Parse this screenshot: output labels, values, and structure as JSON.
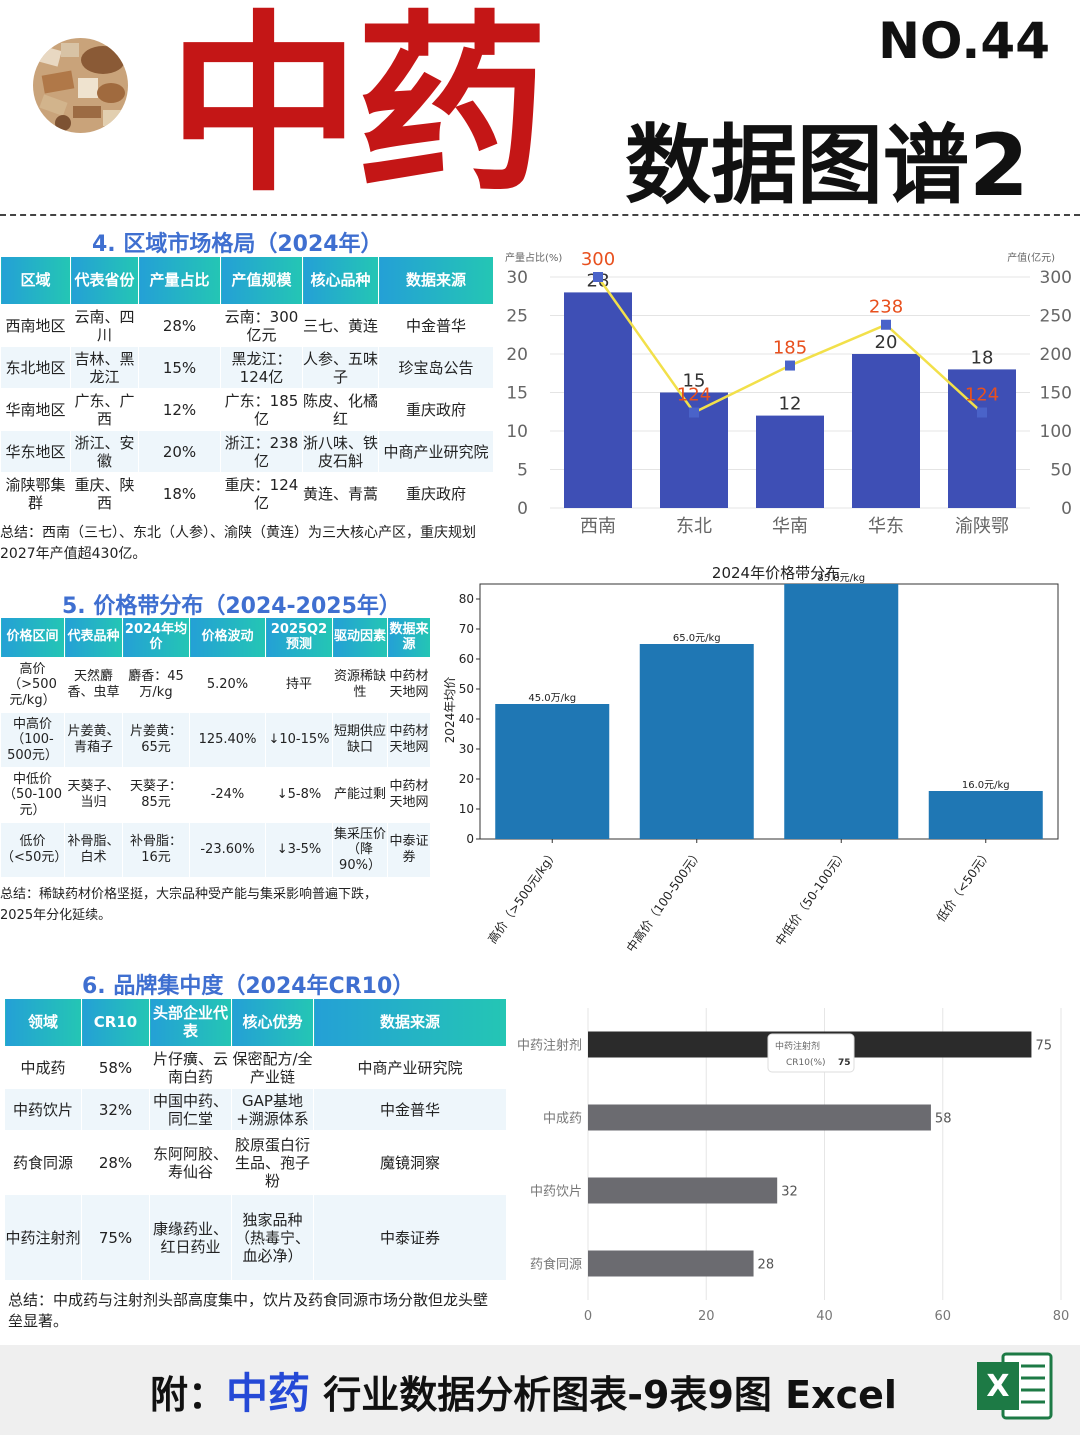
{
  "header": {
    "title": "中药",
    "issue": "NO.44",
    "subtitle": "数据图谱2"
  },
  "section4": {
    "title": "4. 区域市场格局（2024年）",
    "headers": [
      "区域",
      "代表省份",
      "产量占比",
      "产值规模",
      "核心品种",
      "数据来源"
    ],
    "rows": [
      [
        "西南地区",
        "云南、四川",
        "28%",
        "云南：300亿元",
        "三七、黄连",
        "中金普华"
      ],
      [
        "东北地区",
        "吉林、黑龙江",
        "15%",
        "黑龙江：124亿",
        "人参、五味子",
        "珍宝岛公告"
      ],
      [
        "华南地区",
        "广东、广西",
        "12%",
        "广东：185亿",
        "陈皮、化橘红",
        "重庆政府"
      ],
      [
        "华东地区",
        "浙江、安徽",
        "20%",
        "浙江：238亿",
        "浙八味、铁皮石斛",
        "中商产业研究院"
      ],
      [
        "渝陕鄂集群",
        "重庆、陕西",
        "18%",
        "重庆：124亿",
        "黄连、青蒿",
        "重庆政府"
      ]
    ],
    "summary": "总结：西南（三七）、东北（人参）、渝陕（黄连）为三大核心产区，重庆规划2027年产值超430亿。"
  },
  "section5": {
    "title": "5. 价格带分布（2024-2025年）",
    "headers": [
      "价格区间",
      "代表品种",
      "2024年均价",
      "价格波动",
      "2025Q2预测",
      "驱动因素",
      "数据来源"
    ],
    "rows": [
      [
        "高价（>500元/kg）",
        "天然麝香、虫草",
        "麝香：45万/kg",
        "5.20%",
        "持平",
        "资源稀缺性",
        "中药材天地网"
      ],
      [
        "中高价（100-500元）",
        "片姜黄、青葙子",
        "片姜黄：65元",
        "125.40%",
        "↓10-15%",
        "短期供应缺口",
        "中药材天地网"
      ],
      [
        "中低价（50-100元）",
        "天葵子、当归",
        "天葵子：85元",
        "-24%",
        "↓5-8%",
        "产能过剩",
        "中药材天地网"
      ],
      [
        "低价（<50元）",
        "补骨脂、白术",
        "补骨脂：16元",
        "-23.60%",
        "↓3-5%",
        "集采压价（降90%）",
        "中泰证券"
      ]
    ],
    "summary": "总结：稀缺药材价格坚挺，大宗品种受产能与集采影响普遍下跌，2025年分化延续。"
  },
  "section6": {
    "title": "6. 品牌集中度（2024年CR10）",
    "headers": [
      "领域",
      "CR10",
      "头部企业代表",
      "核心优势",
      "数据来源"
    ],
    "rows": [
      [
        "中成药",
        "58%",
        "片仔癀、云南白药",
        "保密配方/全产业链",
        "中商产业研究院"
      ],
      [
        "中药饮片",
        "32%",
        "中国中药、同仁堂",
        "GAP基地+溯源体系",
        "中金普华"
      ],
      [
        "药食同源",
        "28%",
        "东阿阿胶、寿仙谷",
        "胶原蛋白衍生品、孢子粉",
        "魔镜洞察"
      ],
      [
        "中药注射剂",
        "75%",
        "康缘药业、红日药业",
        "独家品种（热毒宁、血必净）",
        "中泰证券"
      ]
    ],
    "summary": "总结：中成药与注射剂头部高度集中，饮片及药食同源市场分散但龙头壁垒显著。"
  },
  "banner": {
    "prefix": "附：",
    "highlight": "中药",
    "rest": "行业数据分析图表-9表9图 Excel",
    "excel_letter": "X"
  },
  "chart_data": [
    {
      "type": "bar",
      "title": "",
      "categories": [
        "西南",
        "东北",
        "华南",
        "华东",
        "渝陕鄂"
      ],
      "series": [
        {
          "name": "",
          "type": "bar",
          "axis": "left",
          "values": [
            28,
            15,
            12,
            20,
            18
          ],
          "color": "#3e4fb5"
        },
        {
          "name": "",
          "type": "line",
          "axis": "right",
          "values": [
            300,
            124,
            185,
            238,
            124
          ],
          "color": "#f2e04a",
          "label_color": "#e8501e",
          "marker_color": "#4a63c9"
        }
      ],
      "ylabel_left": "产量占比(%)",
      "ylabel_right": "产值(亿元)",
      "ylim_left": [
        0,
        30
      ],
      "ylim_right": [
        0,
        300
      ],
      "yticks_left": [
        0,
        5,
        10,
        15,
        20,
        25,
        30
      ],
      "yticks_right": [
        0,
        50,
        100,
        150,
        200,
        250,
        300
      ],
      "grid": true
    },
    {
      "type": "bar",
      "title": "2024年价格带分布",
      "categories": [
        "高价（>500元/kg）",
        "中高价（100-500元）",
        "中低价（50-100元）",
        "低价（<50元）"
      ],
      "values": [
        45,
        65,
        85,
        16
      ],
      "data_labels": [
        "45.0万/kg",
        "65.0元/kg",
        "85.0元/kg",
        "16.0元/kg"
      ],
      "ylabel": "2024年均价",
      "ylim": [
        0,
        85
      ],
      "yticks": [
        0,
        10,
        20,
        30,
        40,
        50,
        60,
        70,
        80
      ],
      "color": "#1f77b4",
      "grid": false
    },
    {
      "type": "bar",
      "orientation": "horizontal",
      "title": "",
      "categories": [
        "中药注射剂",
        "中成药",
        "中药饮片",
        "药食同源"
      ],
      "values": [
        75,
        58,
        32,
        28
      ],
      "xlim": [
        0,
        80
      ],
      "xticks": [
        0,
        20,
        40,
        60,
        80
      ],
      "colors": [
        "#2b2b2b",
        "#6b6b70",
        "#6b6b70",
        "#6b6b70"
      ],
      "tooltip": {
        "title": "中药注射剂",
        "label": "CR10(%)",
        "value": "75"
      },
      "grid": true
    }
  ]
}
